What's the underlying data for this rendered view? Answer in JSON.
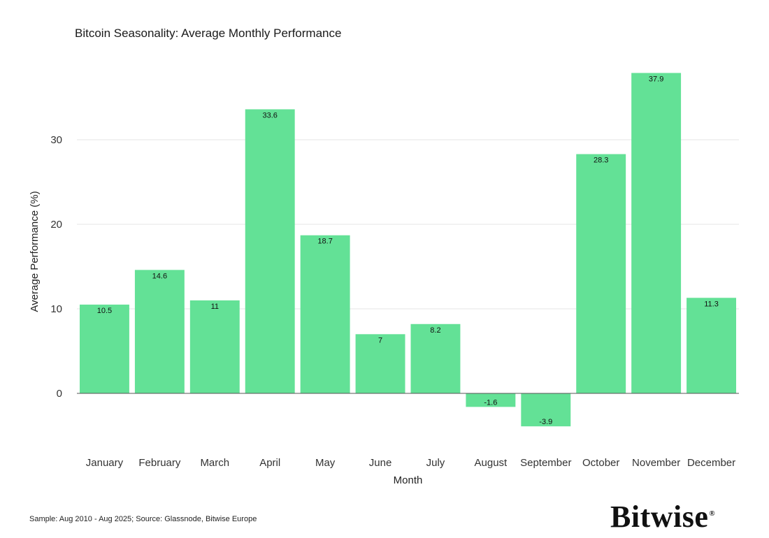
{
  "chart_data": {
    "type": "bar",
    "title": "Bitcoin Seasonality: Average Monthly Performance",
    "xlabel": "Month",
    "ylabel": "Average Performance (%)",
    "categories": [
      "January",
      "February",
      "March",
      "April",
      "May",
      "June",
      "July",
      "August",
      "September",
      "October",
      "November",
      "December"
    ],
    "values": [
      10.5,
      14.6,
      11,
      33.6,
      18.7,
      7,
      8.2,
      -1.6,
      -3.9,
      28.3,
      37.9,
      11.3
    ],
    "value_labels": [
      "10.5",
      "14.6",
      "11",
      "33.6",
      "18.7",
      "7",
      "8.2",
      "-1.6",
      "-3.9",
      "28.3",
      "37.9",
      "11.3"
    ],
    "yticks": [
      0,
      10,
      20,
      30
    ],
    "ylim": [
      -5,
      38
    ],
    "grid": true,
    "legend": "none",
    "bar_color": "#63e196"
  },
  "footer": {
    "note": "Sample: Aug 2010 - Aug 2025; Source: Glassnode, Bitwise Europe",
    "logo": "Bitwise",
    "logo_mark": "®"
  }
}
